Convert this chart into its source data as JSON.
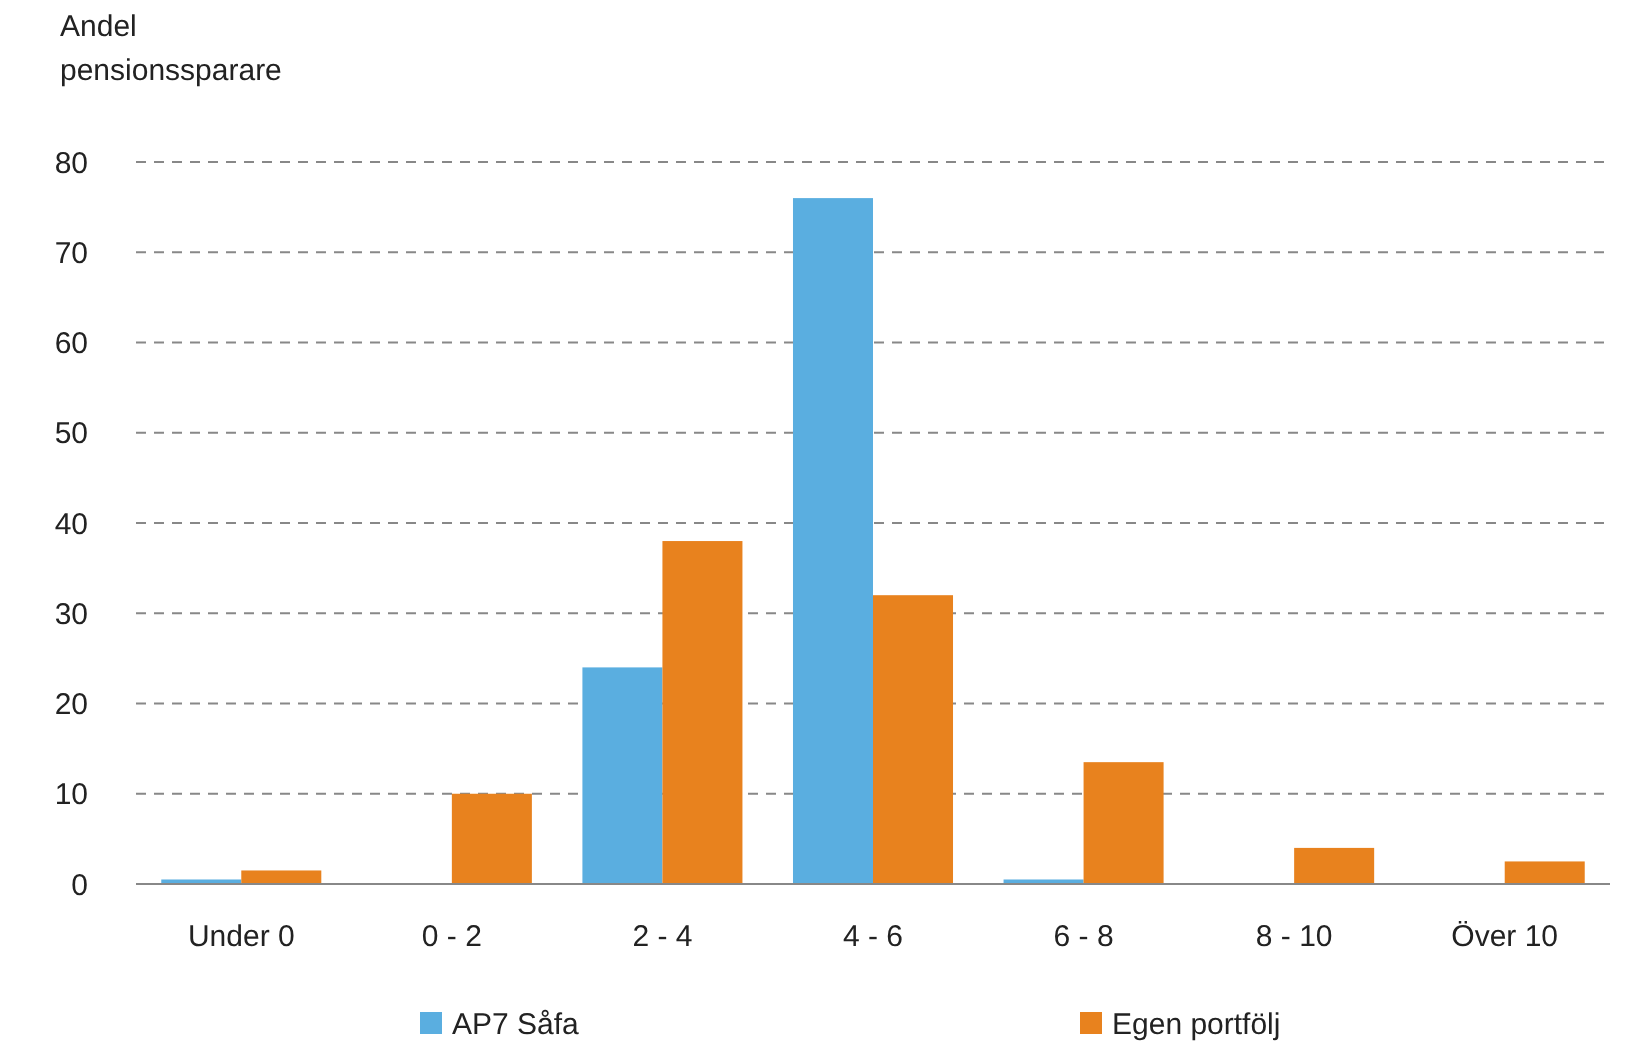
{
  "chart_data": {
    "type": "bar",
    "ylabel": "Andel\npensionssparare",
    "categories": [
      "Under 0",
      "0 - 2",
      "2 - 4",
      "4 - 6",
      "6 - 8",
      "8 - 10",
      "Över 10"
    ],
    "series": [
      {
        "name": "AP7 Såfa",
        "color": "#5aaee0",
        "values": [
          0.5,
          0,
          24,
          76,
          0.5,
          0,
          0
        ]
      },
      {
        "name": "Egen portfölj",
        "color": "#e8821e",
        "values": [
          1.5,
          10,
          38,
          32,
          13.5,
          4,
          2.5
        ]
      }
    ],
    "ylim": [
      0,
      80
    ],
    "yticks": [
      0,
      10,
      20,
      30,
      40,
      50,
      60,
      70,
      80
    ],
    "grid": "y",
    "legend": "bottom"
  }
}
